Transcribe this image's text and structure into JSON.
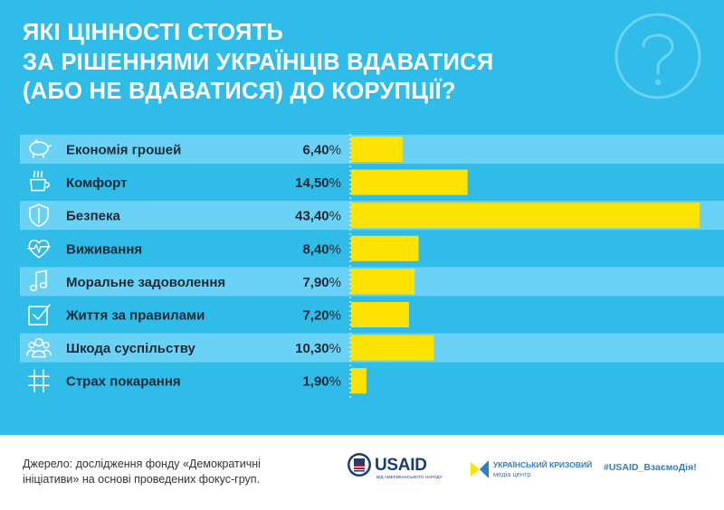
{
  "title_lines": [
    "ЯКІ ЦІННОСТІ СТОЯТЬ",
    "ЗА РІШЕННЯМИ УКРАЇНЦІВ ВДАВАТИСЯ",
    "(АБО НЕ ВДАВАТИСЯ) ДО КОРУПЦІЇ?"
  ],
  "chart_data": {
    "type": "bar",
    "orientation": "horizontal",
    "title": "ЯКІ ЦІННОСТІ СТОЯТЬ ЗА РІШЕННЯМИ УКРАЇНЦІВ ВДАВАТИСЯ (АБО НЕ ВДАВАТИСЯ) ДО КОРУПЦІЇ?",
    "categories": [
      "Економія грошей",
      "Комфорт",
      "Безпека",
      "Виживання",
      "Моральне задоволення",
      "Життя за правилами",
      "Шкода суспільству",
      "Страх покарання"
    ],
    "values": [
      6.4,
      14.5,
      43.4,
      8.4,
      7.9,
      7.2,
      10.3,
      1.9
    ],
    "value_labels": [
      "6,40",
      "14,50",
      "43,40",
      "8,40",
      "7,90",
      "7,20",
      "10,30",
      "1,90"
    ],
    "unit": "%",
    "icons": [
      "piggy-bank-icon",
      "coffee-cup-icon",
      "shield-icon",
      "heartbeat-icon",
      "music-note-icon",
      "checkbox-icon",
      "people-group-icon",
      "grid-bars-icon"
    ],
    "xlim": [
      0,
      43.4
    ],
    "xlabel": "",
    "ylabel": "",
    "grid": false
  },
  "colors": {
    "background": "#2fbce8",
    "row_light": "#6ad3f5",
    "bar": "#fde303",
    "text": "#1c2a36",
    "white": "#ffffff"
  },
  "source_lines": [
    "Джерело: дослідження фонду «Демократичні",
    "ініціативи» на основі проведених фокус-груп."
  ],
  "logos": {
    "usaid": "USAID",
    "usaid_sub": "ВІД АМЕРИКАНСЬКОГО НАРОДУ",
    "ucmc_name": "УКРАЇНСЬКИЙ КРИЗОВИЙ",
    "ucmc_sub": "медіа центр"
  },
  "hashtag": "#USAID_ВзаємоДія!"
}
